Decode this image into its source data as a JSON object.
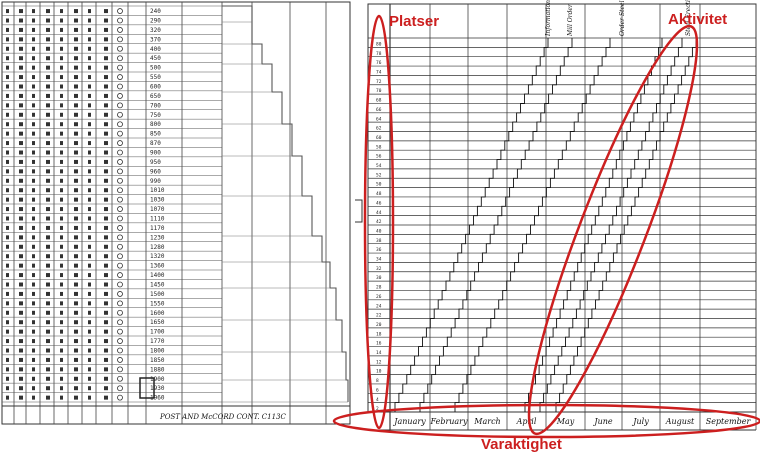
{
  "annotations": {
    "places": "Platser",
    "activity": "Aktivitet",
    "duration": "Varaktighet"
  },
  "left_table": {
    "footer_text": "POST AND McCORD CONT. C113C",
    "col_values": [
      "240",
      "290",
      "320",
      "370",
      "400",
      "450",
      "500",
      "550",
      "600",
      "650",
      "700",
      "750",
      "800",
      "850",
      "870",
      "900",
      "950",
      "960",
      "990",
      "1010",
      "1030",
      "1070",
      "1110",
      "1170",
      "1230",
      "1280",
      "1320",
      "1360",
      "1400",
      "1450",
      "1500",
      "1550",
      "1600",
      "1650",
      "1700",
      "1770",
      "1800",
      "1850",
      "1880",
      "1900",
      "1930",
      "1960"
    ]
  },
  "right_chart": {
    "months": [
      "January",
      "February",
      "March",
      "April",
      "May",
      "June",
      "July",
      "August",
      "September"
    ],
    "top_labels": [
      "Information Required",
      "Mill Order",
      "Order Steel",
      "Steel Erection"
    ],
    "row_numbers": [
      "80",
      "78",
      "76",
      "74",
      "72",
      "70",
      "68",
      "66",
      "64",
      "62",
      "60",
      "58",
      "56",
      "54",
      "52",
      "50",
      "48",
      "46",
      "44",
      "42",
      "40",
      "38",
      "36",
      "34",
      "32",
      "30",
      "28",
      "26",
      "24",
      "22",
      "20",
      "18",
      "16",
      "14",
      "12",
      "10",
      "8",
      "6",
      "4",
      "2"
    ]
  }
}
